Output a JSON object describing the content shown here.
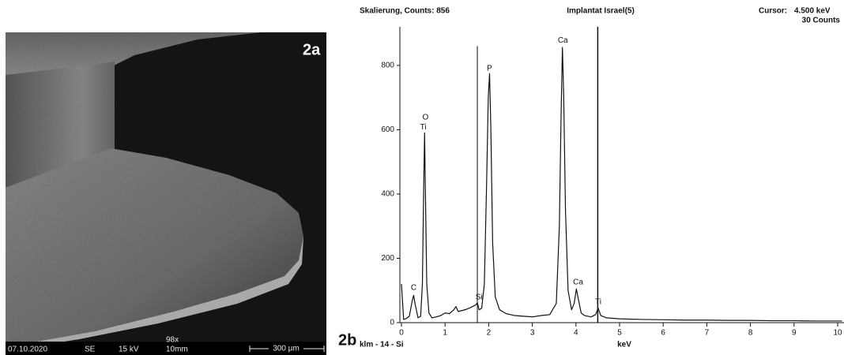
{
  "sem_image": {
    "panel_label": "2a",
    "date": "07.10.2020",
    "detector": "SE",
    "voltage": "15 kV",
    "magnification": "98x",
    "working_distance": "10mm",
    "scale_bar": "300 µm"
  },
  "chart_data": {
    "type": "line",
    "panel_label": "2b",
    "title": "Implantat Israel(5)",
    "subtitle": "Skalierung, Counts: 856",
    "x_label": "keV",
    "footer": "klm - 14 - Si",
    "cursor": {
      "label": "Cursor:",
      "energy": 4.5,
      "energy_label": "4.500 keV",
      "counts_label": "30 Counts"
    },
    "color": "#111111",
    "x": [
      0,
      0.05,
      0.1,
      0.18,
      0.25,
      0.28,
      0.31,
      0.38,
      0.44,
      0.48,
      0.51,
      0.53,
      0.55,
      0.58,
      0.63,
      0.7,
      0.8,
      0.9,
      1.0,
      1.1,
      1.2,
      1.25,
      1.3,
      1.4,
      1.5,
      1.6,
      1.7,
      1.74,
      1.78,
      1.84,
      1.9,
      1.95,
      1.99,
      2.02,
      2.05,
      2.09,
      2.15,
      2.25,
      2.4,
      2.6,
      2.8,
      3.0,
      3.2,
      3.4,
      3.55,
      3.62,
      3.66,
      3.69,
      3.72,
      3.76,
      3.82,
      3.9,
      3.96,
      4.01,
      4.06,
      4.12,
      4.2,
      4.35,
      4.45,
      4.51,
      4.57,
      4.7,
      5.0,
      5.5,
      6.0,
      6.5,
      7.0,
      7.5,
      8.0,
      8.5,
      9.0,
      9.5,
      10.1
    ],
    "values": [
      120,
      10,
      12,
      20,
      70,
      85,
      60,
      15,
      20,
      120,
      420,
      590,
      400,
      120,
      30,
      15,
      18,
      22,
      30,
      28,
      40,
      50,
      35,
      38,
      42,
      48,
      55,
      62,
      40,
      45,
      120,
      420,
      700,
      775,
      600,
      250,
      80,
      40,
      28,
      22,
      20,
      18,
      22,
      25,
      60,
      300,
      650,
      856,
      700,
      350,
      100,
      40,
      60,
      105,
      70,
      30,
      22,
      18,
      25,
      45,
      22,
      15,
      12,
      10,
      9,
      8,
      8,
      7,
      7,
      6,
      6,
      5,
      5
    ],
    "markers": [
      {
        "x": 1.74,
        "y": 860
      }
    ],
    "annotations": [
      {
        "text": "C",
        "x": 0.28,
        "y": 108
      },
      {
        "text": "O",
        "x": 0.55,
        "y": 638
      },
      {
        "text": "Ti",
        "x": 0.5,
        "y": 608
      },
      {
        "text": "P",
        "x": 2.02,
        "y": 790
      },
      {
        "text": "Si",
        "x": 1.78,
        "y": 79
      },
      {
        "text": "Ca",
        "x": 3.7,
        "y": 877
      },
      {
        "text": "Ca",
        "x": 4.05,
        "y": 126
      },
      {
        "text": "Ti",
        "x": 4.51,
        "y": 64
      }
    ],
    "xlim": [
      0,
      10.1
    ],
    "ylim": [
      0,
      920
    ],
    "xticks": [
      0,
      1,
      2,
      3,
      4,
      5,
      6,
      7,
      8,
      9,
      10
    ],
    "yticks": [
      0,
      200,
      400,
      600,
      800
    ]
  }
}
